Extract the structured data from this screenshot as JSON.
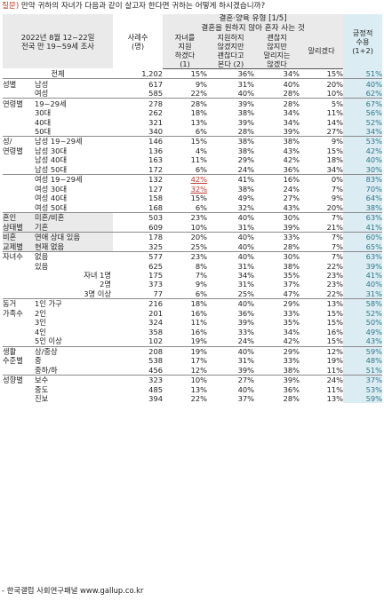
{
  "question": {
    "tag": "질문)",
    "text": " 만약 귀하의 자녀가 다음과 같이 살고자 한다면 귀하는 어떻게 하시겠습니까?"
  },
  "header": {
    "survey_line1": "2022년 8월 12~22일",
    "survey_line2": "전국 만 19~59세 조사",
    "sample_label": [
      "사례수",
      "(명)"
    ],
    "title_line1": "결혼·양육 유형 [1/5]",
    "title_line2": "결혼을 원하지 않아 혼자 사는 것",
    "options": [
      [
        "자녀를",
        "지원",
        "하겠다",
        "(1)"
      ],
      [
        "지원하지",
        "않겠지만",
        "괜찮다고",
        "본다 (2)"
      ],
      [
        "괜찮지",
        "않지만",
        "말리지는",
        "않겠다"
      ],
      [
        "말리겠다"
      ]
    ],
    "sum_label": [
      "긍정적",
      "수용",
      "(1+2)"
    ]
  },
  "rows": [
    {
      "group": "",
      "sub": "전체",
      "n": "1,202",
      "v": [
        "15%",
        "36%",
        "34%",
        "15%"
      ],
      "s": "51%",
      "total": true
    },
    {
      "group": "성별",
      "sub": "남성",
      "n": "617",
      "v": [
        "9%",
        "31%",
        "40%",
        "20%"
      ],
      "s": "40%",
      "sep": true
    },
    {
      "group": "",
      "sub": "여성",
      "n": "585",
      "v": [
        "22%",
        "40%",
        "28%",
        "10%"
      ],
      "s": "62%"
    },
    {
      "group": "연령별",
      "sub": "19~29세",
      "n": "278",
      "v": [
        "28%",
        "39%",
        "28%",
        "5%"
      ],
      "s": "67%",
      "sep": true
    },
    {
      "group": "",
      "sub": "30대",
      "n": "262",
      "v": [
        "18%",
        "38%",
        "34%",
        "11%"
      ],
      "s": "56%"
    },
    {
      "group": "",
      "sub": "40대",
      "n": "321",
      "v": [
        "13%",
        "39%",
        "34%",
        "14%"
      ],
      "s": "52%"
    },
    {
      "group": "",
      "sub": "50대",
      "n": "340",
      "v": [
        "6%",
        "28%",
        "39%",
        "27%"
      ],
      "s": "34%"
    },
    {
      "group": "성/",
      "sub": "남성 19~29세",
      "n": "146",
      "v": [
        "15%",
        "38%",
        "38%",
        "9%"
      ],
      "s": "53%",
      "sep": true
    },
    {
      "group": "연령별",
      "sub": "남성 30대",
      "n": "136",
      "v": [
        "4%",
        "38%",
        "43%",
        "15%"
      ],
      "s": "42%"
    },
    {
      "group": "",
      "sub": "남성 40대",
      "n": "163",
      "v": [
        "11%",
        "29%",
        "42%",
        "18%"
      ],
      "s": "40%"
    },
    {
      "group": "",
      "sub": "남성 50대",
      "n": "172",
      "v": [
        "6%",
        "24%",
        "36%",
        "34%"
      ],
      "s": "30%"
    },
    {
      "group": "",
      "sub": "여성 19~29세",
      "n": "132",
      "v": [
        "42%",
        "41%",
        "16%",
        "0%"
      ],
      "s": "83%",
      "hl": [
        0
      ],
      "sep": true
    },
    {
      "group": "",
      "sub": "여성 30대",
      "n": "127",
      "v": [
        "32%",
        "38%",
        "24%",
        "7%"
      ],
      "s": "70%",
      "hl": [
        0
      ]
    },
    {
      "group": "",
      "sub": "여성 40대",
      "n": "158",
      "v": [
        "15%",
        "49%",
        "27%",
        "9%"
      ],
      "s": "64%"
    },
    {
      "group": "",
      "sub": "여성 50대",
      "n": "168",
      "v": [
        "6%",
        "32%",
        "43%",
        "20%"
      ],
      "s": "38%"
    },
    {
      "group": "혼인",
      "sub": "미혼/비혼",
      "n": "503",
      "v": [
        "23%",
        "40%",
        "30%",
        "7%"
      ],
      "s": "63%",
      "sep": true,
      "shade": true
    },
    {
      "group": "상태별",
      "sub": "기혼",
      "n": "609",
      "v": [
        "10%",
        "31%",
        "39%",
        "21%"
      ],
      "s": "41%",
      "shade": true
    },
    {
      "group": "비혼",
      "sub": "연애 상대 있음",
      "n": "178",
      "v": [
        "20%",
        "40%",
        "33%",
        "7%"
      ],
      "s": "60%",
      "sep": true,
      "shade": true
    },
    {
      "group": "교제별",
      "sub": "현재 없음",
      "n": "325",
      "v": [
        "25%",
        "40%",
        "28%",
        "7%"
      ],
      "s": "65%",
      "shade": true
    },
    {
      "group": "자녀수",
      "sub": "없음",
      "n": "577",
      "v": [
        "23%",
        "40%",
        "30%",
        "7%"
      ],
      "s": "63%",
      "sep": true
    },
    {
      "group": "",
      "sub": "있음",
      "n": "625",
      "v": [
        "8%",
        "31%",
        "38%",
        "22%"
      ],
      "s": "39%"
    },
    {
      "group": "",
      "sub": "자녀 1명",
      "n": "175",
      "v": [
        "7%",
        "34%",
        "35%",
        "23%"
      ],
      "s": "41%",
      "right": true
    },
    {
      "group": "",
      "sub": "2명",
      "n": "373",
      "v": [
        "9%",
        "31%",
        "37%",
        "23%"
      ],
      "s": "40%",
      "right": true
    },
    {
      "group": "",
      "sub": "3명 이상",
      "n": "77",
      "v": [
        "6%",
        "25%",
        "47%",
        "22%"
      ],
      "s": "31%",
      "right": true
    },
    {
      "group": "동거",
      "sub": "1인 가구",
      "n": "216",
      "v": [
        "18%",
        "40%",
        "29%",
        "13%"
      ],
      "s": "58%",
      "sep": true
    },
    {
      "group": "가족수",
      "sub": "2인",
      "n": "201",
      "v": [
        "16%",
        "36%",
        "33%",
        "15%"
      ],
      "s": "52%"
    },
    {
      "group": "",
      "sub": "3인",
      "n": "324",
      "v": [
        "11%",
        "39%",
        "35%",
        "15%"
      ],
      "s": "50%"
    },
    {
      "group": "",
      "sub": "4인",
      "n": "358",
      "v": [
        "16%",
        "33%",
        "34%",
        "16%"
      ],
      "s": "49%"
    },
    {
      "group": "",
      "sub": "5인 이상",
      "n": "102",
      "v": [
        "19%",
        "24%",
        "42%",
        "15%"
      ],
      "s": "43%"
    },
    {
      "group": "생활",
      "sub": "상/중상",
      "n": "208",
      "v": [
        "19%",
        "40%",
        "29%",
        "12%"
      ],
      "s": "59%",
      "sep": true
    },
    {
      "group": "수준별",
      "sub": "중",
      "n": "538",
      "v": [
        "17%",
        "31%",
        "33%",
        "19%"
      ],
      "s": "48%"
    },
    {
      "group": "",
      "sub": "중하/하",
      "n": "456",
      "v": [
        "12%",
        "39%",
        "38%",
        "11%"
      ],
      "s": "51%"
    },
    {
      "group": "성향별",
      "sub": "보수",
      "n": "323",
      "v": [
        "10%",
        "27%",
        "39%",
        "24%"
      ],
      "s": "37%",
      "sep": true
    },
    {
      "group": "",
      "sub": "중도",
      "n": "485",
      "v": [
        "13%",
        "40%",
        "36%",
        "11%"
      ],
      "s": "53%"
    },
    {
      "group": "",
      "sub": "진보",
      "n": "394",
      "v": [
        "22%",
        "37%",
        "28%",
        "13%"
      ],
      "s": "59%"
    }
  ],
  "footer": "- 한국갤럽 사회연구패널 www.gallup.co.kr",
  "colors": {
    "accent_positive": "#2a7a8a",
    "highlight_red": "#c0392b",
    "header_gray": "#eaeaea",
    "sum_bg": "#dcecf3"
  }
}
